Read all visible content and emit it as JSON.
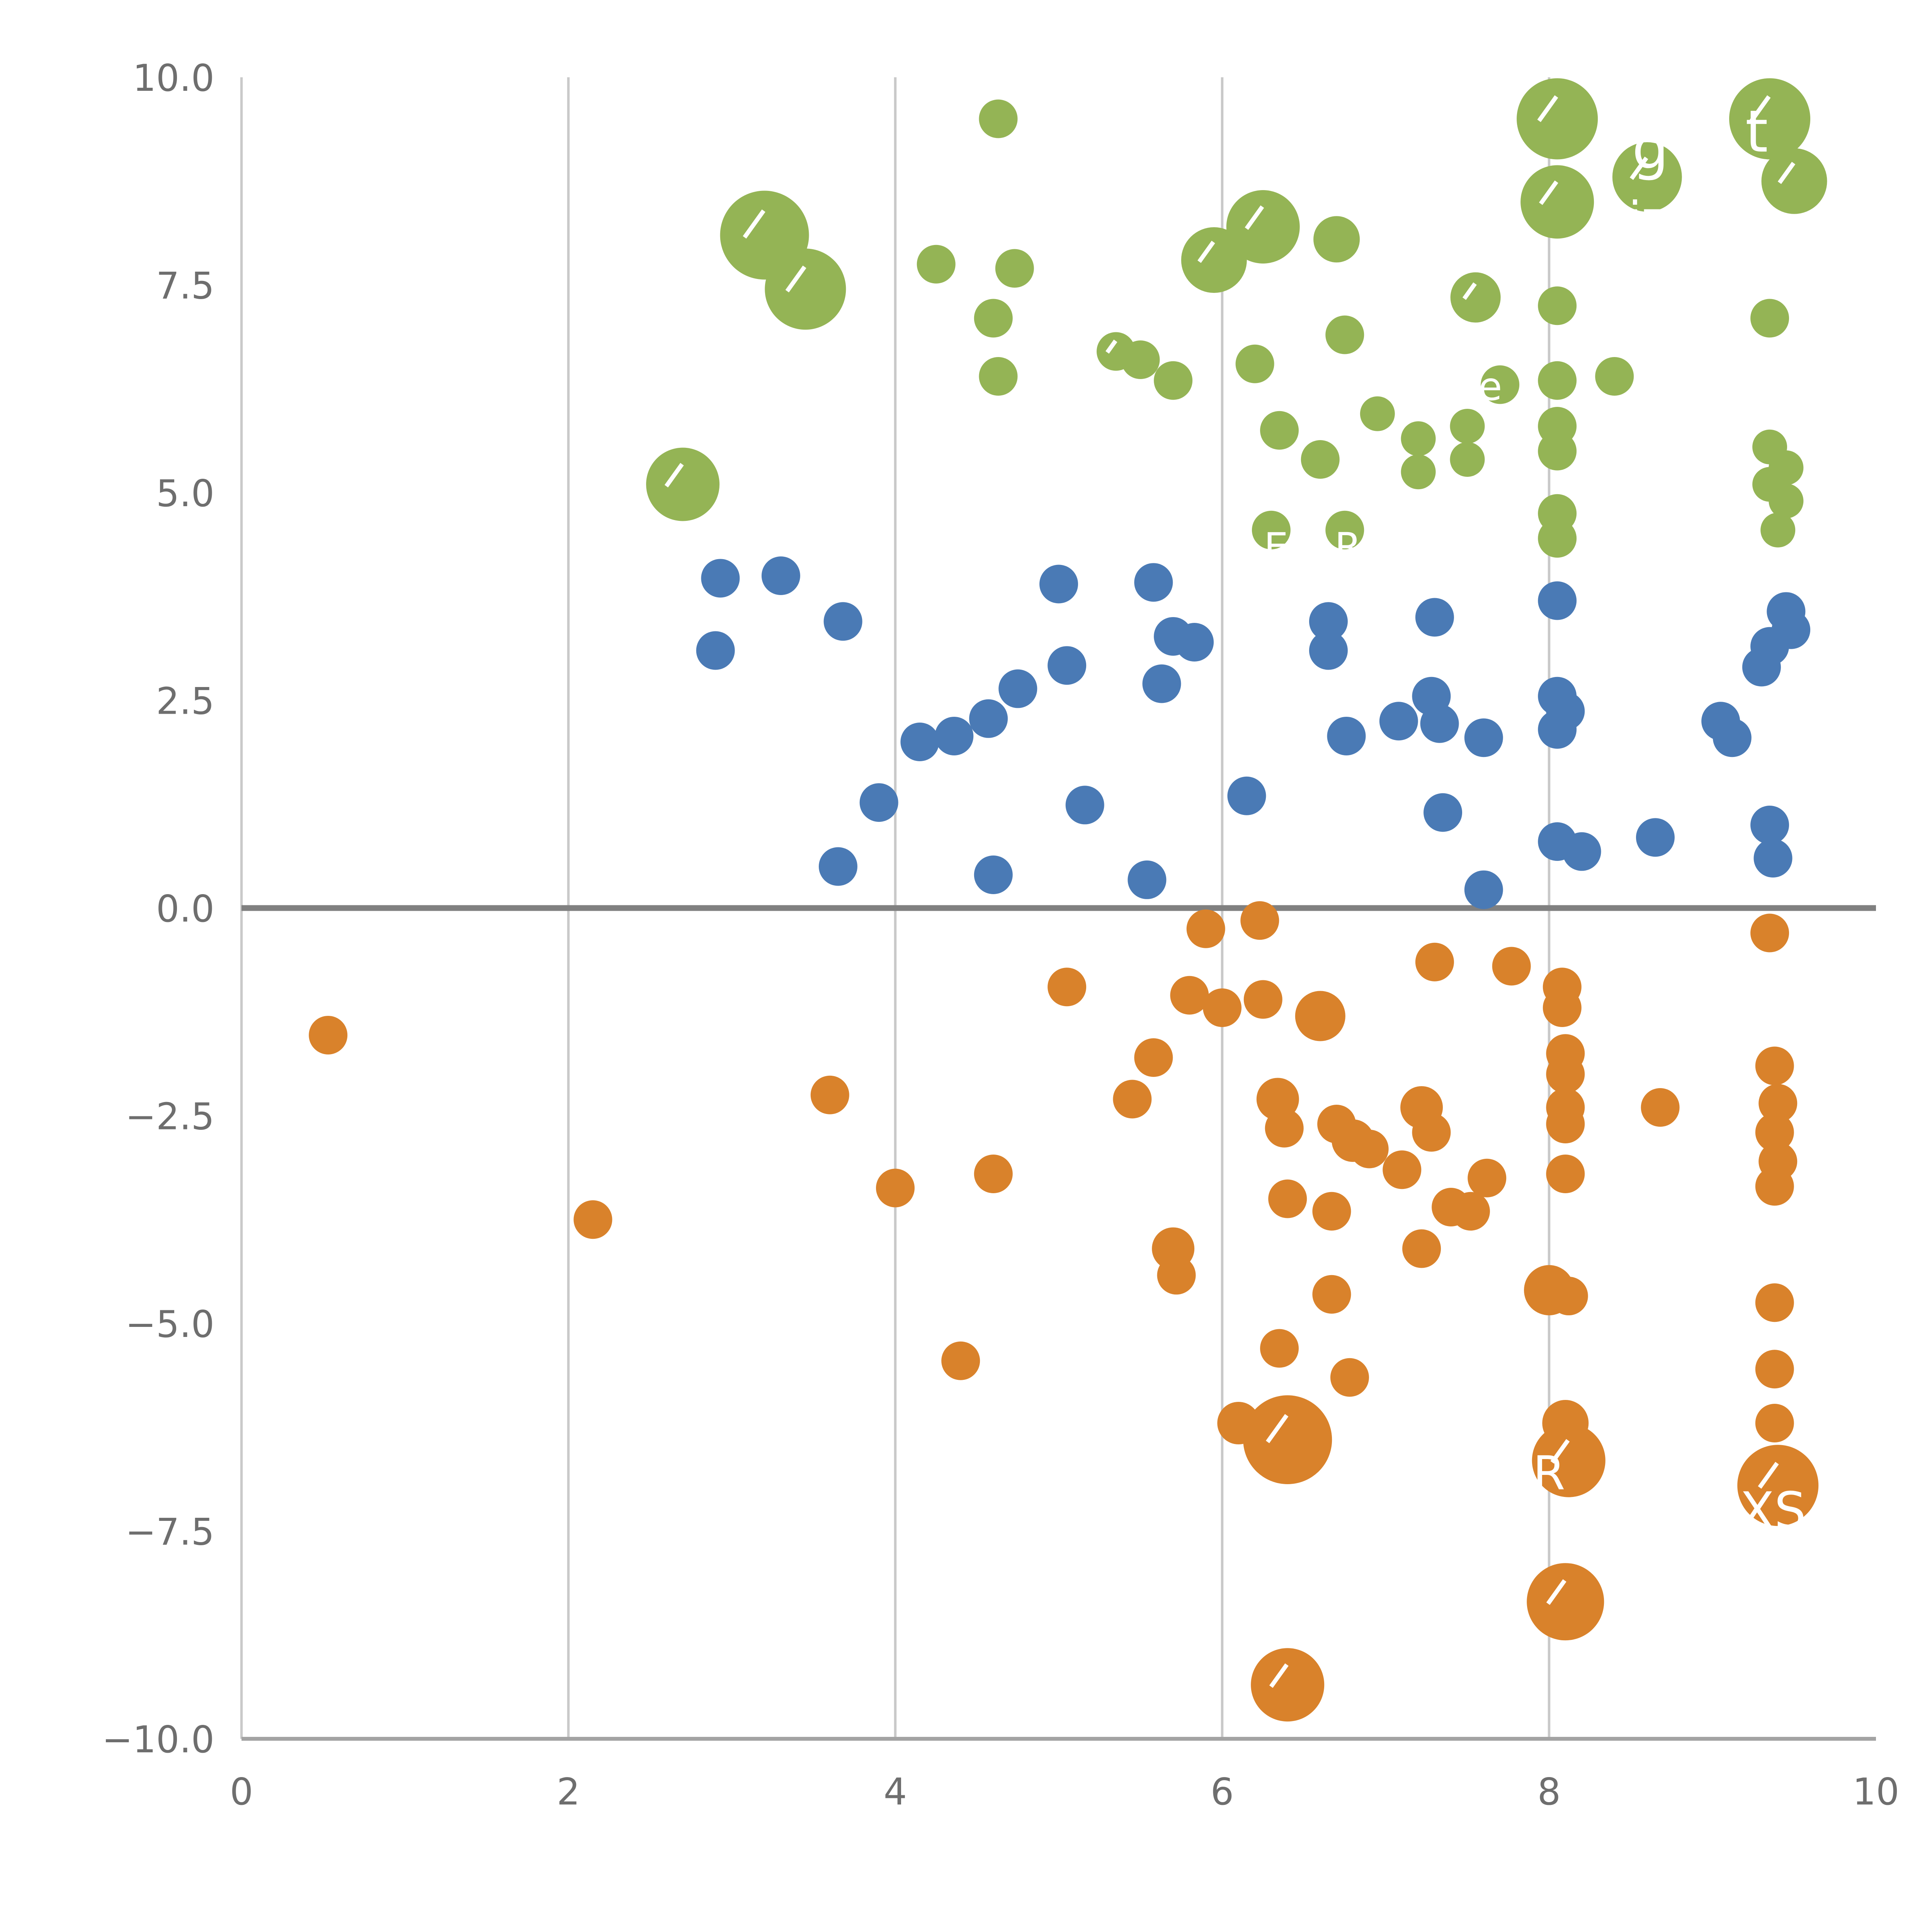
{
  "chart_data": {
    "type": "scatter",
    "title": "",
    "xlabel": "",
    "ylabel": "",
    "xlim": [
      0,
      10
    ],
    "ylim": [
      -10,
      10
    ],
    "x_ticks": [
      0,
      2,
      4,
      6,
      8,
      10
    ],
    "x_tick_labels": [
      "0",
      "2",
      "4",
      "6",
      "8",
      "10"
    ],
    "y_ticks": [
      -10,
      -7.5,
      -5,
      -2.5,
      0,
      2.5,
      5,
      7.5,
      10
    ],
    "y_tick_labels": [
      "−10.0",
      "−7.5",
      "−5.0",
      "−2.5",
      "0.0",
      "2.5",
      "5.0",
      "7.5",
      "10.0"
    ],
    "grid": {
      "vertical_lines": [
        2,
        4,
        6,
        8
      ],
      "zero_line": true,
      "legend": "none"
    },
    "colors": {
      "grid": "#c9c9c9",
      "zero_line": "#808080",
      "axis": "#a3a3a3",
      "tick_label": "#6e6e6e",
      "green": "#94b455",
      "blue": "#4a7ab5",
      "orange": "#d9822b"
    },
    "series": [
      {
        "name": "green",
        "color": "#94b455",
        "points": [
          [
            4.63,
            9.5,
            10
          ],
          [
            3.2,
            8.1,
            23,
            1
          ],
          [
            3.45,
            7.45,
            21,
            1
          ],
          [
            2.7,
            5.1,
            19,
            1
          ],
          [
            4.25,
            7.75,
            10
          ],
          [
            4.73,
            7.7,
            10
          ],
          [
            4.6,
            7.1,
            10
          ],
          [
            4.63,
            6.4,
            10
          ],
          [
            5.35,
            6.7,
            10,
            1
          ],
          [
            5.5,
            6.6,
            10
          ],
          [
            5.7,
            6.35,
            10
          ],
          [
            6.2,
            6.55,
            10
          ],
          [
            5.95,
            7.8,
            17,
            1
          ],
          [
            6.25,
            8.2,
            19,
            1
          ],
          [
            6.7,
            8.05,
            12
          ],
          [
            6.75,
            6.9,
            10
          ],
          [
            6.35,
            5.75,
            10
          ],
          [
            6.6,
            5.4,
            10
          ],
          [
            6.3,
            4.55,
            10
          ],
          [
            6.75,
            4.55,
            10
          ],
          [
            6.95,
            5.95,
            9
          ],
          [
            7.2,
            5.65,
            9
          ],
          [
            7.2,
            5.25,
            9
          ],
          [
            7.5,
            5.8,
            9
          ],
          [
            7.5,
            5.4,
            9
          ],
          [
            7.55,
            7.35,
            13,
            1
          ],
          [
            7.7,
            6.3,
            10
          ],
          [
            8.05,
            9.5,
            21,
            1
          ],
          [
            8.05,
            8.5,
            19,
            1
          ],
          [
            8.6,
            8.8,
            18,
            1
          ],
          [
            8.05,
            7.25,
            10
          ],
          [
            8.05,
            6.35,
            10
          ],
          [
            8.05,
            5.8,
            10
          ],
          [
            8.05,
            5.5,
            10
          ],
          [
            8.4,
            6.4,
            10
          ],
          [
            8.05,
            4.75,
            10
          ],
          [
            8.05,
            4.45,
            10
          ],
          [
            9.35,
            9.5,
            21,
            1
          ],
          [
            9.5,
            8.75,
            17,
            1
          ],
          [
            9.35,
            7.1,
            10
          ],
          [
            9.35,
            5.55,
            9
          ],
          [
            9.45,
            5.3,
            9
          ],
          [
            9.35,
            5.1,
            9
          ],
          [
            9.45,
            4.9,
            9
          ],
          [
            9.4,
            4.55,
            9
          ]
        ]
      },
      {
        "name": "blue",
        "color": "#4a7ab5",
        "points": [
          [
            2.93,
            3.97,
            10
          ],
          [
            3.3,
            4.0,
            10
          ],
          [
            2.9,
            3.1,
            10
          ],
          [
            3.68,
            3.45,
            10
          ],
          [
            3.9,
            1.27,
            10
          ],
          [
            3.65,
            0.5,
            10
          ],
          [
            4.15,
            2.0,
            10
          ],
          [
            4.36,
            2.07,
            10
          ],
          [
            4.57,
            2.28,
            10
          ],
          [
            4.75,
            2.64,
            10
          ],
          [
            5.0,
            3.9,
            10
          ],
          [
            5.05,
            2.92,
            10
          ],
          [
            5.58,
            3.92,
            10
          ],
          [
            5.7,
            3.27,
            10
          ],
          [
            5.83,
            3.2,
            10
          ],
          [
            5.63,
            2.7,
            10
          ],
          [
            4.6,
            0.4,
            10
          ],
          [
            5.16,
            1.24,
            10
          ],
          [
            5.54,
            0.34,
            10
          ],
          [
            6.15,
            1.35,
            10
          ],
          [
            6.65,
            3.45,
            10
          ],
          [
            6.65,
            3.1,
            10
          ],
          [
            6.76,
            2.07,
            10
          ],
          [
            7.08,
            2.25,
            10
          ],
          [
            7.28,
            2.55,
            10
          ],
          [
            7.33,
            2.22,
            10
          ],
          [
            7.3,
            3.5,
            10
          ],
          [
            7.35,
            1.15,
            10
          ],
          [
            7.6,
            2.05,
            10
          ],
          [
            7.6,
            0.22,
            10
          ],
          [
            8.05,
            3.7,
            10
          ],
          [
            8.05,
            2.55,
            10
          ],
          [
            8.1,
            2.37,
            10
          ],
          [
            8.05,
            2.15,
            10
          ],
          [
            8.05,
            0.8,
            10
          ],
          [
            8.2,
            0.68,
            10
          ],
          [
            8.65,
            0.85,
            10
          ],
          [
            9.05,
            2.25,
            10
          ],
          [
            9.12,
            2.05,
            10
          ],
          [
            9.45,
            3.57,
            10
          ],
          [
            9.48,
            3.35,
            10
          ],
          [
            9.35,
            3.15,
            10
          ],
          [
            9.3,
            2.9,
            10
          ],
          [
            9.35,
            1.0,
            10
          ],
          [
            9.37,
            0.6,
            10
          ]
        ]
      },
      {
        "name": "orange",
        "color": "#d9822b",
        "points": [
          [
            0.53,
            -1.53,
            10
          ],
          [
            2.15,
            -3.75,
            10
          ],
          [
            3.6,
            -2.25,
            10
          ],
          [
            4.0,
            -3.37,
            10
          ],
          [
            4.6,
            -3.2,
            10
          ],
          [
            4.4,
            -5.45,
            10
          ],
          [
            5.05,
            -0.95,
            10
          ],
          [
            5.58,
            -1.8,
            10
          ],
          [
            5.45,
            -2.3,
            10
          ],
          [
            5.8,
            -1.05,
            10
          ],
          [
            6.0,
            -1.2,
            10
          ],
          [
            6.25,
            -1.1,
            10
          ],
          [
            5.9,
            -0.25,
            10
          ],
          [
            6.23,
            -0.15,
            10
          ],
          [
            5.7,
            -4.1,
            11
          ],
          [
            5.72,
            -4.42,
            10
          ],
          [
            6.34,
            -2.3,
            11
          ],
          [
            6.38,
            -2.65,
            10
          ],
          [
            6.6,
            -1.3,
            13
          ],
          [
            6.7,
            -2.6,
            10
          ],
          [
            6.8,
            -2.8,
            11
          ],
          [
            6.9,
            -2.9,
            10
          ],
          [
            7.1,
            -3.15,
            10
          ],
          [
            7.22,
            -2.4,
            11
          ],
          [
            7.28,
            -2.7,
            10
          ],
          [
            6.4,
            -3.5,
            10
          ],
          [
            6.67,
            -3.65,
            10
          ],
          [
            6.67,
            -4.65,
            10
          ],
          [
            6.35,
            -5.3,
            10
          ],
          [
            6.78,
            -5.65,
            10
          ],
          [
            6.1,
            -6.2,
            11
          ],
          [
            6.4,
            -6.4,
            23,
            1
          ],
          [
            7.22,
            -4.1,
            10
          ],
          [
            7.4,
            -3.6,
            10
          ],
          [
            7.52,
            -3.65,
            10
          ],
          [
            7.62,
            -3.25,
            10
          ],
          [
            7.3,
            -0.65,
            10
          ],
          [
            7.77,
            -0.7,
            10
          ],
          [
            8.08,
            -0.95,
            10
          ],
          [
            8.08,
            -1.2,
            10
          ],
          [
            8.1,
            -1.75,
            10
          ],
          [
            8.1,
            -2.0,
            10
          ],
          [
            8.1,
            -2.4,
            10
          ],
          [
            8.1,
            -2.6,
            10
          ],
          [
            8.1,
            -3.2,
            10
          ],
          [
            8.0,
            -4.6,
            13
          ],
          [
            8.12,
            -4.67,
            10
          ],
          [
            8.68,
            -2.4,
            10
          ],
          [
            8.1,
            -6.2,
            12
          ],
          [
            8.12,
            -6.65,
            19,
            1
          ],
          [
            8.1,
            -8.35,
            20,
            1
          ],
          [
            9.35,
            -0.3,
            10
          ],
          [
            9.38,
            -1.9,
            10
          ],
          [
            9.4,
            -2.35,
            10
          ],
          [
            9.38,
            -2.7,
            10
          ],
          [
            9.4,
            -3.05,
            10
          ],
          [
            9.38,
            -3.35,
            10
          ],
          [
            9.38,
            -4.75,
            10
          ],
          [
            9.38,
            -5.55,
            10
          ],
          [
            9.38,
            -6.2,
            10
          ],
          [
            9.4,
            -6.95,
            21,
            1
          ],
          [
            6.4,
            -9.35,
            19,
            1
          ]
        ]
      }
    ],
    "annotations": [
      {
        "text": "t",
        "x": 9.27,
        "y": 9.35,
        "size": 30
      },
      {
        "text": "g",
        "x": 8.62,
        "y": 9.15,
        "size": 30
      },
      {
        "text": "iz",
        "x": 8.6,
        "y": 8.3,
        "size": 24
      },
      {
        "text": "e",
        "x": 7.64,
        "y": 6.28,
        "size": 20
      },
      {
        "text": "E",
        "x": 6.33,
        "y": 4.35,
        "size": 20
      },
      {
        "text": "R",
        "x": 6.77,
        "y": 4.35,
        "size": 20
      },
      {
        "text": "R",
        "x": 8.0,
        "y": -6.8,
        "size": 24
      },
      {
        "text": "XS",
        "x": 9.37,
        "y": -7.25,
        "size": 26
      }
    ]
  }
}
